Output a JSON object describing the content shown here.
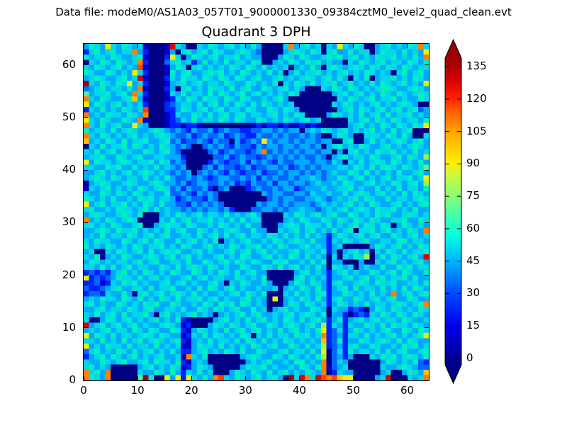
{
  "header": {
    "text": "Data file: modeM0/AS1A03_057T01_9000001330_09384cztM0_level2_quad_clean.evt"
  },
  "chart_data": {
    "type": "heatmap",
    "title": "Quadrant 3 DPH",
    "grid_size": {
      "cols": 64,
      "rows": 64
    },
    "x_axis": {
      "ticks": [
        0,
        10,
        20,
        30,
        40,
        50,
        60
      ],
      "range": [
        0,
        64
      ]
    },
    "y_axis": {
      "ticks": [
        0,
        10,
        20,
        30,
        40,
        50,
        60
      ],
      "range": [
        0,
        64
      ]
    },
    "colorbar": {
      "colormap": "jet",
      "extend": "both",
      "vmin": -3,
      "vmax": 139,
      "ticks": [
        0,
        15,
        30,
        45,
        60,
        75,
        90,
        105,
        120,
        135
      ],
      "gradient": [
        [
          0.0,
          "#000084"
        ],
        [
          0.13,
          "#0000f0"
        ],
        [
          0.23,
          "#0048ff"
        ],
        [
          0.34,
          "#00b4ff"
        ],
        [
          0.42,
          "#00ffe1"
        ],
        [
          0.5,
          "#50ffa0"
        ],
        [
          0.55,
          "#87ff70"
        ],
        [
          0.62,
          "#cdf83c"
        ],
        [
          0.66,
          "#ffef00"
        ],
        [
          0.76,
          "#ffa400"
        ],
        [
          0.83,
          "#ff5a00"
        ],
        [
          0.87,
          "#ff2000"
        ],
        [
          0.93,
          "#d20000"
        ],
        [
          1.0,
          "#9c0000"
        ]
      ]
    },
    "cell_encoding": "each hex char (0-e) is a detector-pixel counts bucket, value = char x 10 counts; rows listed top (y=63) to bottom (y=0), 64 chars per row (x=0..63)",
    "palette": [
      "#000085",
      "#0000c8",
      "#0022ff",
      "#0066ff",
      "#00aaff",
      "#00d8e8",
      "#00f0c4",
      "#50f596",
      "#a0f050",
      "#f0f000",
      "#ffc000",
      "#ff8000",
      "#ff4000",
      "#e00000",
      "#a00000"
    ],
    "rows": [
      "4654954654510001d540054654564546400005b45645054954650045645465b5",
      "256456455b420001405645646544565430000456546505644645504655464549",
      "645546544561000295046545645564544000465465445656456454655645464b",
      "0546546545b2000356452464546455465004546546564544054654564554654 6",
      "5465456454c100014650564545465465464545045464056545654654654654 55",
      "6544654549520001645644565645465454645046455645456454654540564564",
      "4565445645d100025465546546546545644564545654564640546045564546 54",
      "e546546594520001456456455465446545460546546455645645464654564549",
      "3456455464b100024056454655464564465456454000546546545456654456 54",
      "745564564b5200015464554646545645645454650000004564564546546545 65",
      "b54654456a4100012546546554654654454564000000000546545645564544 65",
      "9465456454520002345546456454654646545450000000546545456454565400",
      "25464546545c000224654564564554654465465400000004564654564564563 4",
      "b4546554654b000125446546456456455456454650000465454645646455645 4",
      "9546544654b1000123546455465465446545465456450000054564654654554 6",
      "b546456449540001221221000000000121221211212100000456454654654659",
      "6455464565445654343243342343322334434344045465456454564546456000",
      "b546545456454565433423433423432243343433434300465400555465464005",
      "a454654645564456342334324330423439434434344344005600464545654564",
      "0546455646545465434300343432433243443443443404564546544564545654",
      "54645645544654564300000342343323 4b34343434434404056454655645464 5",
      "4556446545644554442000003342343323434343433430456455465445646548",
      "9465545654556465343000024323342434324334443443540546456546545464",
      "5544656446454645434000342433234233443423434344455465464665465457",
      "4456454564565454343403434324323342334344343434544654645454644564",
      "4565465455464546433434323443343424343343445434465456454564556459",
      "0456544565445654434234433434232433424434434544546544564546545648",
      "1545645454654565342433420340002343343442344454455645446454645546",
      "5446546546545446334324343000000004344334435445446456545645464654",
      "6545464454656455423433243000000000343443344543454564654464554565",
      "9456455645465464433243434300000043443434443454545645465445645456",
      "5644546554564645443434344342000334434344544345456456546556454644",
      "4565445654600045465456455464545640000546545645644654546564456545",
      "b454654565000054645645564546464550000454654465465465465445564465",
      "5645465445600456554654454654546440004565465546454564654650465454",
      "44565465564545464564465454565446440054564564546456055645 6454654b",
      "4546455465456456445546456464564554654645464542465456456446545645",
      "5465544654564654464564546045456445465456546442546545644554664554",
      "6454654546545564546544564546545564546544564542450000046545645465",
      "4500546545646456564456454456456456454456455462404564505465464556",
      "54604546544565456456454456454654456454654645405054658046 4654564d",
      "4654545545645644554644654564654654465644546460440004005456454564",
      "5546464564554465464565465454465446546456454640654504544644656455",
      "2323245645465454654465454654645644000004564542456454465456465446",
      "9232346554645645445645645544654546000005645452445645645645564644",
      "2231254656454456456454456405465446400046546542564456546556445546",
      "3223456445546455644546465456454454450454654642456464554645464654",
      "23325446405645645654645445456465460005464545624465454645 4b456456",
      "4546554654645465464556456454456454090454654642564465456456446544",
      "56454465454656446544546546564654540004654654524654546455 4565456b",
      "4456455465456445546446546545644645045645446540544232046546545465",
      "5464564645564056454564540454564564454564565460442023254654654654",
      "5004654564545645462100004564546456454654645642462456456455465445",
      "d456456456454456541200046546545644654565456482542544654646554654",
      "4545645546546544652146545464564564546456454692352465454564465465",
      "94654645545654654412546465454650546455465645b2342554645456454569",
      "554645464564565456214546455464654645465454 54a23624465456546 46544",
      "9454655464554645451146554645454654564465464582342564465445465645",
      "3564546546456454642245645465464465445645546490352645546464564456",
      "2456465456454564451b54600000045654465465454680342400054656456546",
      "54465456445646554621454000000045456445466454b03540000004654546 32",
      "564540000045645465124654000004655645445465 46b13450000005445654 33",
      "b564b00000544654642546450004654654645645 4654b025440000045004654a",
      "b654b000007e600949295464bc546545645640e5db5dcbca99000045d000545b"
    ]
  }
}
